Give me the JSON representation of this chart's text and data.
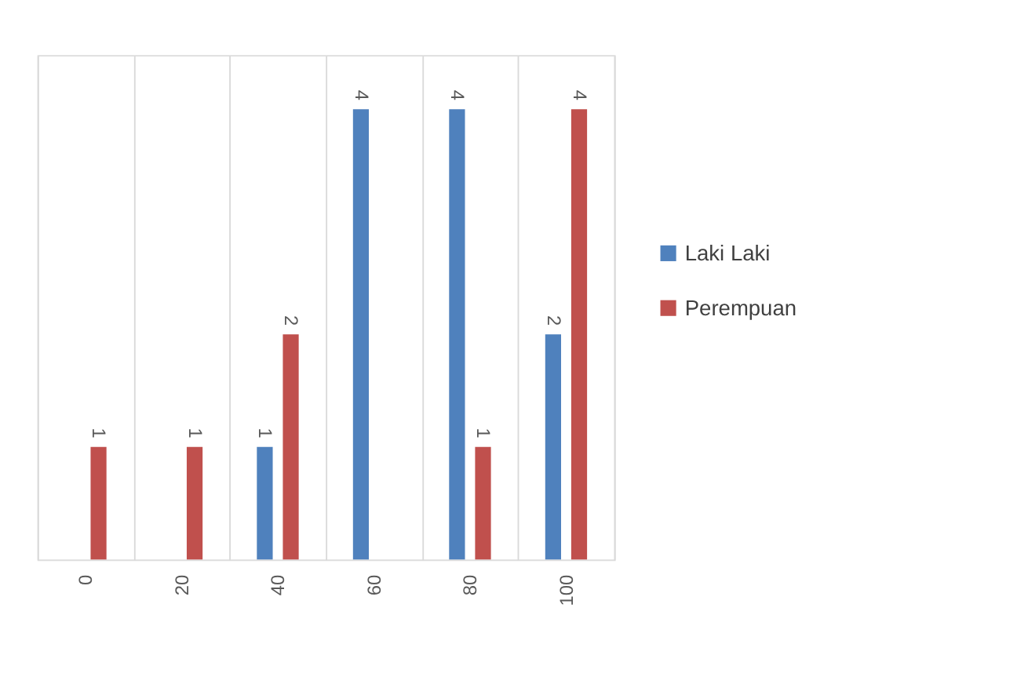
{
  "chart_data": {
    "type": "bar",
    "categories": [
      "0",
      "20",
      "40",
      "60",
      "80",
      "100"
    ],
    "series": [
      {
        "name": "Laki Laki",
        "color": "#4f81bd",
        "values": [
          0,
          0,
          1,
          4,
          4,
          2
        ],
        "value_labels": [
          null,
          null,
          "1",
          "4",
          "4",
          "2"
        ]
      },
      {
        "name": "Perempuan",
        "color": "#c0504d",
        "values": [
          1,
          1,
          2,
          0,
          1,
          4
        ],
        "value_labels": [
          "1",
          "1",
          "2",
          null,
          "1",
          "4"
        ]
      }
    ],
    "grid": "x",
    "legend": "right",
    "tick_labels": "x"
  }
}
